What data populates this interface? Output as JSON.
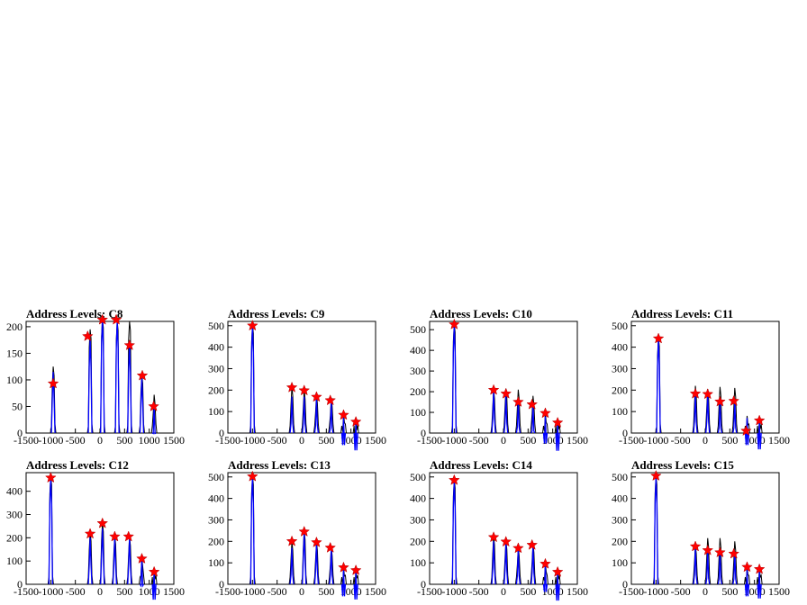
{
  "chart_data": [
    {
      "type": "bar",
      "title": "Address Levels: C8",
      "xlim": [
        -1500,
        1500
      ],
      "ylim": [
        0,
        210
      ],
      "yticks": [
        0,
        50,
        100,
        150,
        200
      ],
      "xticks": [
        -1500,
        -1000,
        -500,
        0,
        500,
        1000,
        1500
      ],
      "histogram": [
        {
          "x": -950,
          "y": 125
        },
        {
          "x": -200,
          "y": 195
        },
        {
          "x": 50,
          "y": 215
        },
        {
          "x": 350,
          "y": 210
        },
        {
          "x": 600,
          "y": 210
        },
        {
          "x": 850,
          "y": 110
        },
        {
          "x": 1100,
          "y": 72
        }
      ],
      "fit": [
        {
          "x": -950,
          "y": 115
        },
        {
          "x": -200,
          "y": 175
        },
        {
          "x": 50,
          "y": 215
        },
        {
          "x": 350,
          "y": 210
        },
        {
          "x": 600,
          "y": 165
        },
        {
          "x": 850,
          "y": 105
        },
        {
          "x": 1100,
          "y": 50
        }
      ],
      "peaks": [
        {
          "x": -950,
          "y": 93
        },
        {
          "x": -250,
          "y": 182
        },
        {
          "x": 50,
          "y": 213
        },
        {
          "x": 330,
          "y": 213
        },
        {
          "x": 600,
          "y": 165
        },
        {
          "x": 860,
          "y": 108
        },
        {
          "x": 1090,
          "y": 50
        }
      ]
    },
    {
      "type": "bar",
      "title": "Address Levels: C9",
      "xlim": [
        -1500,
        1500
      ],
      "ylim": [
        0,
        520
      ],
      "yticks": [
        0,
        100,
        200,
        300,
        400,
        500
      ],
      "xticks": [
        -1500,
        -1000,
        -500,
        0,
        500,
        1000,
        1500
      ],
      "histogram": [
        {
          "x": -1000,
          "y": 505
        },
        {
          "x": -200,
          "y": 215
        },
        {
          "x": 50,
          "y": 200
        },
        {
          "x": 300,
          "y": 180
        },
        {
          "x": 600,
          "y": 165
        },
        {
          "x": 850,
          "y": 90
        },
        {
          "x": 1100,
          "y": 55
        }
      ],
      "fit": [
        {
          "x": -1000,
          "y": 500
        },
        {
          "x": -200,
          "y": 170
        },
        {
          "x": 50,
          "y": 170
        },
        {
          "x": 300,
          "y": 160
        },
        {
          "x": 600,
          "y": 150
        },
        {
          "x": 850,
          "y": 70
        },
        {
          "x": 1100,
          "y": 45
        }
      ],
      "peaks": [
        {
          "x": -1000,
          "y": 500
        },
        {
          "x": -200,
          "y": 212
        },
        {
          "x": 50,
          "y": 198
        },
        {
          "x": 300,
          "y": 168
        },
        {
          "x": 580,
          "y": 152
        },
        {
          "x": 850,
          "y": 84
        },
        {
          "x": 1100,
          "y": 52
        }
      ]
    },
    {
      "type": "bar",
      "title": "Address Levels: C10",
      "xlim": [
        -1500,
        1500
      ],
      "ylim": [
        0,
        540
      ],
      "yticks": [
        0,
        100,
        200,
        300,
        400,
        500
      ],
      "xticks": [
        -1500,
        -1000,
        -500,
        0,
        500,
        1000,
        1500
      ],
      "histogram": [
        {
          "x": -1000,
          "y": 530
        },
        {
          "x": -200,
          "y": 210
        },
        {
          "x": 50,
          "y": 215
        },
        {
          "x": 300,
          "y": 210
        },
        {
          "x": 600,
          "y": 180
        },
        {
          "x": 850,
          "y": 95
        },
        {
          "x": 1100,
          "y": 60
        }
      ],
      "fit": [
        {
          "x": -1000,
          "y": 520
        },
        {
          "x": -200,
          "y": 200
        },
        {
          "x": 50,
          "y": 180
        },
        {
          "x": 300,
          "y": 160
        },
        {
          "x": 600,
          "y": 140
        },
        {
          "x": 850,
          "y": 80
        },
        {
          "x": 1100,
          "y": 45
        }
      ],
      "peaks": [
        {
          "x": -1000,
          "y": 525
        },
        {
          "x": -200,
          "y": 208
        },
        {
          "x": 50,
          "y": 190
        },
        {
          "x": 300,
          "y": 150
        },
        {
          "x": 580,
          "y": 138
        },
        {
          "x": 850,
          "y": 96
        },
        {
          "x": 1100,
          "y": 50
        }
      ]
    },
    {
      "type": "bar",
      "title": "Address Levels: C11",
      "xlim": [
        -1500,
        1500
      ],
      "ylim": [
        0,
        520
      ],
      "yticks": [
        0,
        100,
        200,
        300,
        400,
        500
      ],
      "xticks": [
        -1500,
        -1000,
        -500,
        0,
        500,
        1000,
        1500
      ],
      "histogram": [
        {
          "x": -950,
          "y": 445
        },
        {
          "x": -200,
          "y": 220
        },
        {
          "x": 50,
          "y": 205
        },
        {
          "x": 300,
          "y": 215
        },
        {
          "x": 600,
          "y": 210
        },
        {
          "x": 850,
          "y": 80
        },
        {
          "x": 1100,
          "y": 60
        }
      ],
      "fit": [
        {
          "x": -950,
          "y": 440
        },
        {
          "x": -200,
          "y": 180
        },
        {
          "x": 50,
          "y": 180
        },
        {
          "x": 300,
          "y": 150
        },
        {
          "x": 600,
          "y": 150
        },
        {
          "x": 850,
          "y": 70
        },
        {
          "x": 1100,
          "y": 50
        }
      ],
      "peaks": [
        {
          "x": -950,
          "y": 440
        },
        {
          "x": -200,
          "y": 183
        },
        {
          "x": 50,
          "y": 181
        },
        {
          "x": 300,
          "y": 146
        },
        {
          "x": 580,
          "y": 149
        },
        {
          "x": 830,
          "y": 10
        },
        {
          "x": 1100,
          "y": 58
        }
      ]
    },
    {
      "type": "bar",
      "title": "Address Levels: C12",
      "xlim": [
        -1500,
        1500
      ],
      "ylim": [
        0,
        480
      ],
      "yticks": [
        0,
        100,
        200,
        300,
        400
      ],
      "xticks": [
        -1500,
        -1000,
        -500,
        0,
        500,
        1000,
        1500
      ],
      "histogram": [
        {
          "x": -1000,
          "y": 465
        },
        {
          "x": -200,
          "y": 225
        },
        {
          "x": 50,
          "y": 265
        },
        {
          "x": 300,
          "y": 210
        },
        {
          "x": 600,
          "y": 205
        },
        {
          "x": 850,
          "y": 115
        },
        {
          "x": 1100,
          "y": 60
        }
      ],
      "fit": [
        {
          "x": -1000,
          "y": 460
        },
        {
          "x": -200,
          "y": 200
        },
        {
          "x": 50,
          "y": 240
        },
        {
          "x": 300,
          "y": 200
        },
        {
          "x": 600,
          "y": 200
        },
        {
          "x": 850,
          "y": 110
        },
        {
          "x": 1100,
          "y": 50
        }
      ],
      "peaks": [
        {
          "x": -1000,
          "y": 458
        },
        {
          "x": -200,
          "y": 217
        },
        {
          "x": 50,
          "y": 262
        },
        {
          "x": 300,
          "y": 205
        },
        {
          "x": 580,
          "y": 205
        },
        {
          "x": 850,
          "y": 110
        },
        {
          "x": 1100,
          "y": 53
        }
      ]
    },
    {
      "type": "bar",
      "title": "Address Levels: C13",
      "xlim": [
        -1500,
        1500
      ],
      "ylim": [
        0,
        520
      ],
      "yticks": [
        0,
        100,
        200,
        300,
        400,
        500
      ],
      "xticks": [
        -1500,
        -1000,
        -500,
        0,
        500,
        1000,
        1500
      ],
      "histogram": [
        {
          "x": -1000,
          "y": 505
        },
        {
          "x": -200,
          "y": 200
        },
        {
          "x": 50,
          "y": 250
        },
        {
          "x": 300,
          "y": 200
        },
        {
          "x": 600,
          "y": 175
        },
        {
          "x": 850,
          "y": 80
        },
        {
          "x": 1100,
          "y": 70
        }
      ],
      "fit": [
        {
          "x": -1000,
          "y": 500
        },
        {
          "x": -200,
          "y": 170
        },
        {
          "x": 50,
          "y": 240
        },
        {
          "x": 300,
          "y": 190
        },
        {
          "x": 600,
          "y": 170
        },
        {
          "x": 850,
          "y": 70
        },
        {
          "x": 1100,
          "y": 55
        }
      ],
      "peaks": [
        {
          "x": -1000,
          "y": 502
        },
        {
          "x": -200,
          "y": 200
        },
        {
          "x": 50,
          "y": 245
        },
        {
          "x": 300,
          "y": 195
        },
        {
          "x": 580,
          "y": 170
        },
        {
          "x": 850,
          "y": 78
        },
        {
          "x": 1100,
          "y": 65
        }
      ]
    },
    {
      "type": "bar",
      "title": "Address Levels: C14",
      "xlim": [
        -1500,
        1500
      ],
      "ylim": [
        0,
        520
      ],
      "yticks": [
        0,
        100,
        200,
        300,
        400,
        500
      ],
      "xticks": [
        -1500,
        -1000,
        -500,
        0,
        500,
        1000,
        1500
      ],
      "histogram": [
        {
          "x": -1000,
          "y": 490
        },
        {
          "x": -200,
          "y": 225
        },
        {
          "x": 50,
          "y": 205
        },
        {
          "x": 300,
          "y": 175
        },
        {
          "x": 600,
          "y": 190
        },
        {
          "x": 850,
          "y": 100
        },
        {
          "x": 1100,
          "y": 65
        }
      ],
      "fit": [
        {
          "x": -1000,
          "y": 480
        },
        {
          "x": -200,
          "y": 200
        },
        {
          "x": 50,
          "y": 190
        },
        {
          "x": 300,
          "y": 165
        },
        {
          "x": 600,
          "y": 180
        },
        {
          "x": 850,
          "y": 90
        },
        {
          "x": 1100,
          "y": 50
        }
      ],
      "peaks": [
        {
          "x": -1000,
          "y": 485
        },
        {
          "x": -200,
          "y": 219
        },
        {
          "x": 50,
          "y": 198
        },
        {
          "x": 300,
          "y": 168
        },
        {
          "x": 580,
          "y": 183
        },
        {
          "x": 850,
          "y": 95
        },
        {
          "x": 1100,
          "y": 57
        }
      ]
    },
    {
      "type": "bar",
      "title": "Address Levels: C15",
      "xlim": [
        -1500,
        1500
      ],
      "ylim": [
        0,
        520
      ],
      "yticks": [
        0,
        100,
        200,
        300,
        400,
        500
      ],
      "xticks": [
        -1500,
        -1000,
        -500,
        0,
        500,
        1000,
        1500
      ],
      "histogram": [
        {
          "x": -1000,
          "y": 505
        },
        {
          "x": -200,
          "y": 185
        },
        {
          "x": 50,
          "y": 215
        },
        {
          "x": 300,
          "y": 215
        },
        {
          "x": 600,
          "y": 200
        },
        {
          "x": 850,
          "y": 85
        },
        {
          "x": 1100,
          "y": 75
        }
      ],
      "fit": [
        {
          "x": -1000,
          "y": 500
        },
        {
          "x": -200,
          "y": 170
        },
        {
          "x": 50,
          "y": 155
        },
        {
          "x": 300,
          "y": 150
        },
        {
          "x": 600,
          "y": 150
        },
        {
          "x": 850,
          "y": 70
        },
        {
          "x": 1100,
          "y": 60
        }
      ],
      "peaks": [
        {
          "x": -1000,
          "y": 505
        },
        {
          "x": -200,
          "y": 176
        },
        {
          "x": 50,
          "y": 158
        },
        {
          "x": 300,
          "y": 148
        },
        {
          "x": 580,
          "y": 142
        },
        {
          "x": 850,
          "y": 80
        },
        {
          "x": 1100,
          "y": 70
        }
      ]
    }
  ],
  "colors": {
    "histogram": "#000000",
    "fit": "#0000ff",
    "peak_marker": "#ff0000",
    "frame": "#000000"
  }
}
